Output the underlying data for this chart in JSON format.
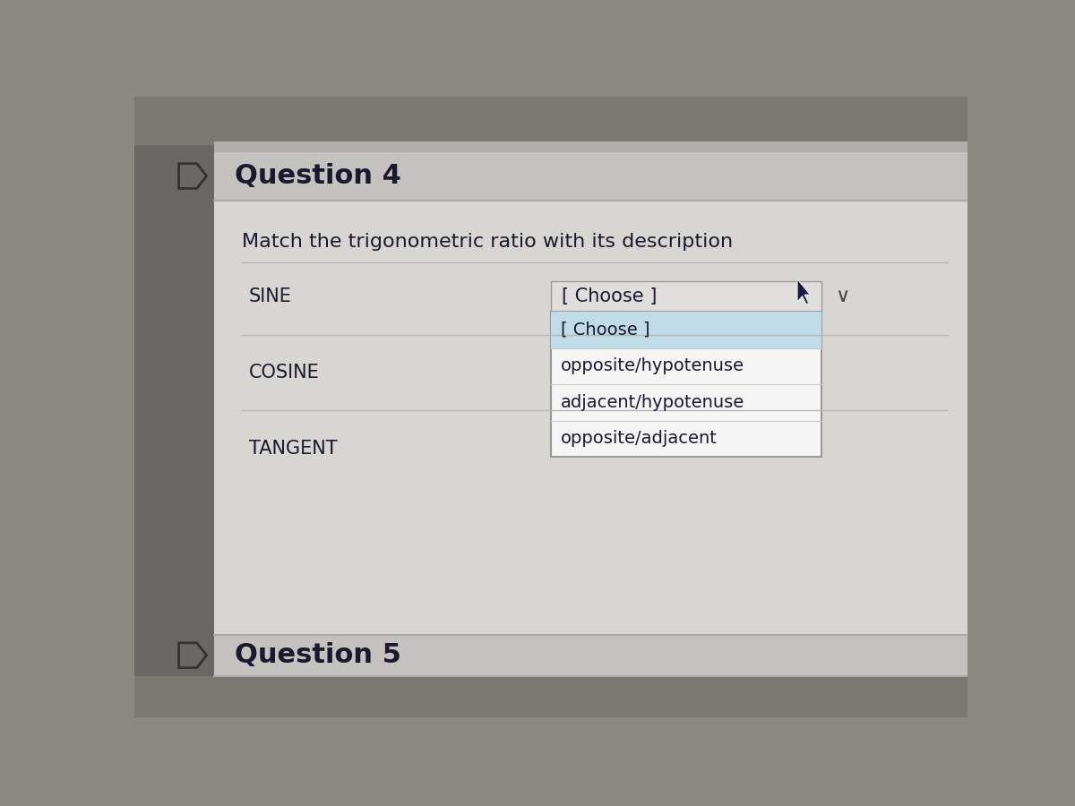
{
  "bg_color": "#8a8880",
  "outer_bg": "#7a7870",
  "panel_outer_bg": "#c8c6c2",
  "panel_content_bg": "#d8d6d2",
  "header_bg": "#c0bebb",
  "header_border": "#a0a09e",
  "question_title": "Question 4",
  "question_text": "Match the trigonometric ratio with its description",
  "trig_labels": [
    "SINE",
    "COSINE",
    "TANGENT"
  ],
  "dropdown_label": "[ Choose ]",
  "dropdown_items": [
    "[ Choose ]",
    "opposite/hypotenuse",
    "adjacent/hypotenuse",
    "opposite/adjacent"
  ],
  "dropdown_highlight_color": "#c0dce8",
  "dropdown_box_color": "#f5f5f5",
  "dropdown_border_color": "#999999",
  "text_color": "#1a1a2e",
  "label_color": "#1a1a2e",
  "title_color": "#1a1a2e",
  "panel_bg": "#d4d2ce",
  "chevron_color": "#444444",
  "cursor_color": "#1a1a3e",
  "separator_color": "#b8b6b2",
  "q5_title": "Question 5"
}
